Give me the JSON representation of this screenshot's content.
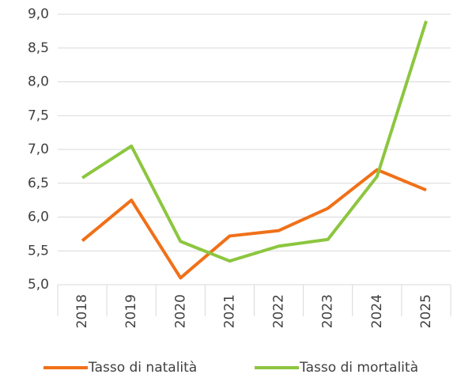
{
  "chart_data": {
    "type": "line",
    "categories": [
      "2018",
      "2019",
      "2020",
      "2021",
      "2022",
      "2023",
      "2024",
      "2025"
    ],
    "series": [
      {
        "name": "Tasso di natalità",
        "color": "#f07018",
        "values": [
          5.65,
          6.25,
          5.1,
          5.72,
          5.8,
          6.13,
          6.7,
          6.4
        ]
      },
      {
        "name": "Tasso di mortalità",
        "color": "#8cc63f",
        "values": [
          6.58,
          7.05,
          5.64,
          5.35,
          5.57,
          5.67,
          6.6,
          8.9
        ]
      }
    ],
    "ylim": [
      5.0,
      9.0
    ],
    "yticks": [
      {
        "value": 5.0,
        "label": "5,0"
      },
      {
        "value": 5.5,
        "label": "5,5"
      },
      {
        "value": 6.0,
        "label": "6,0"
      },
      {
        "value": 6.5,
        "label": "6,5"
      },
      {
        "value": 7.0,
        "label": "7,0"
      },
      {
        "value": 7.5,
        "label": "7,5"
      },
      {
        "value": 8.0,
        "label": "8,0"
      },
      {
        "value": 8.5,
        "label": "8,5"
      },
      {
        "value": 9.0,
        "label": "9,0"
      }
    ],
    "grid": true,
    "legend": "bottom"
  }
}
